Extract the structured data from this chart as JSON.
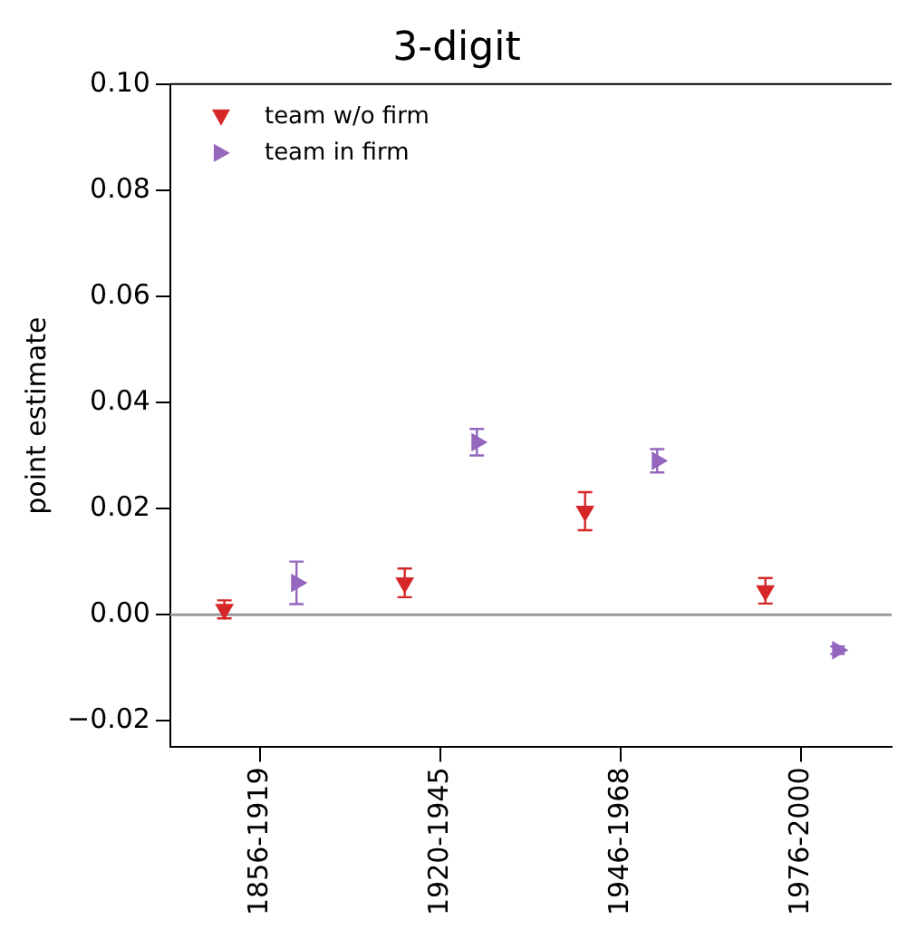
{
  "chart_data": {
    "type": "scatter",
    "title": "3-digit",
    "ylabel": "point estimate",
    "categories": [
      "1856-1919",
      "1920-1945",
      "1946-1968",
      "1976-2000"
    ],
    "series": [
      {
        "name": "team w/o firm",
        "color": "#d62728",
        "values": [
          0.001,
          0.006,
          0.0195,
          0.0045
        ],
        "errors": [
          0.0017,
          0.0027,
          0.0036,
          0.0024
        ]
      },
      {
        "name": "team in firm",
        "color": "#9467bd",
        "values": [
          0.006,
          0.0325,
          0.029,
          -0.0067
        ],
        "errors": [
          0.004,
          0.0025,
          0.0022,
          0.0007
        ]
      }
    ],
    "ylim": [
      -0.025,
      0.1
    ],
    "yticks": [
      {
        "value": -0.02,
        "label": "−0.02"
      },
      {
        "value": 0,
        "label": "0.00"
      },
      {
        "value": 0.02,
        "label": "0.02"
      },
      {
        "value": 0.04,
        "label": "0.04"
      },
      {
        "value": 0.06,
        "label": "0.06"
      },
      {
        "value": 0.08,
        "label": "0.08"
      },
      {
        "value": 0.1,
        "label": "0.10"
      }
    ],
    "ref_lines": [
      {
        "axis": "y",
        "value": 0,
        "color": "#999999"
      }
    ],
    "marker": "triangle",
    "legend": "top left",
    "grid": false
  }
}
